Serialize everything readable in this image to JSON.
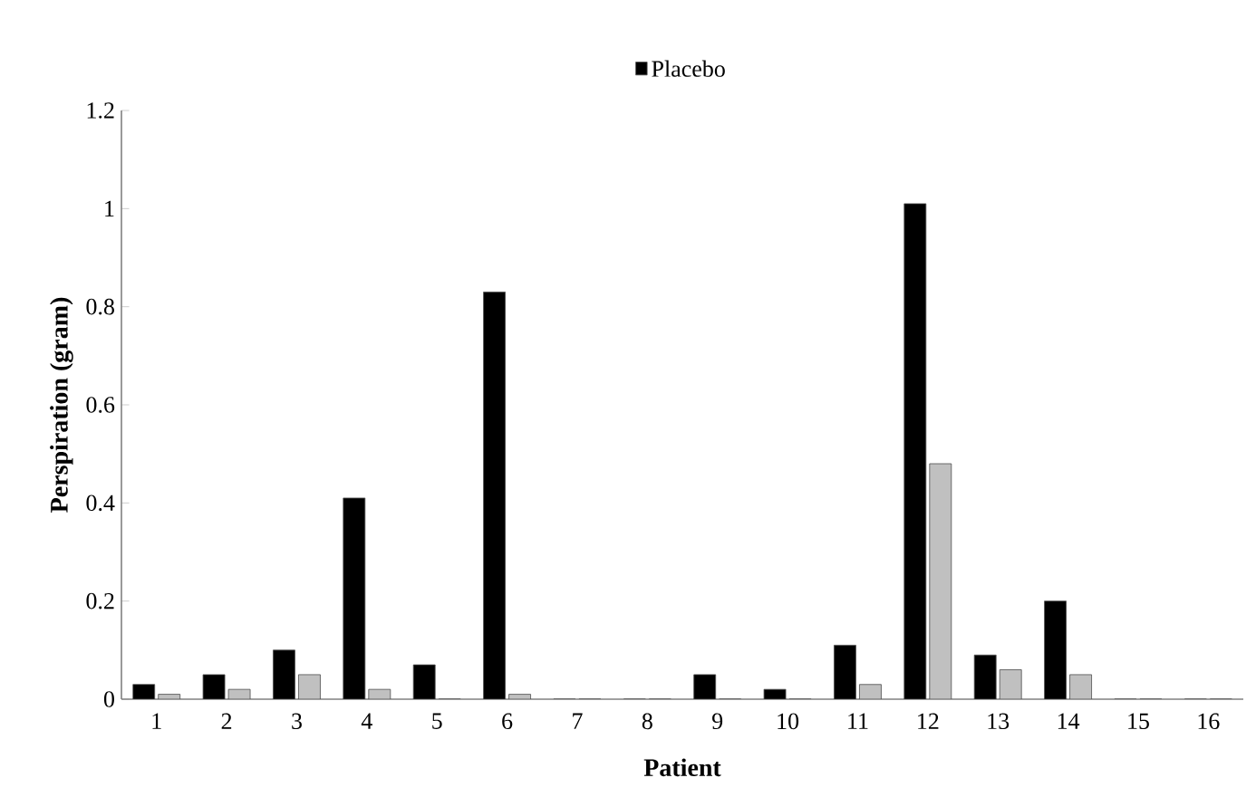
{
  "chart_data": {
    "type": "bar",
    "xlabel": "Patient",
    "ylabel": "Perspiration (gram)",
    "categories": [
      "1",
      "2",
      "3",
      "4",
      "5",
      "6",
      "7",
      "8",
      "9",
      "10",
      "11",
      "12",
      "13",
      "14",
      "15",
      "16"
    ],
    "series": [
      {
        "name": "Placebo",
        "color": "#000000",
        "values": [
          0.03,
          0.05,
          0.1,
          0.41,
          0.07,
          0.83,
          0,
          0,
          0.05,
          0.02,
          0.11,
          1.01,
          0.09,
          0.2,
          0,
          0
        ]
      },
      {
        "color": "#c0c0c0",
        "values": [
          0.01,
          0.02,
          0.05,
          0.02,
          0,
          0.01,
          0,
          0,
          0,
          0,
          0.03,
          0.48,
          0.06,
          0.05,
          0,
          0
        ]
      }
    ],
    "ylim": [
      0,
      1.2
    ],
    "yticks": [
      0,
      0.2,
      0.4,
      0.6,
      0.8,
      1,
      1.2
    ],
    "legend": "top",
    "grid": false
  }
}
